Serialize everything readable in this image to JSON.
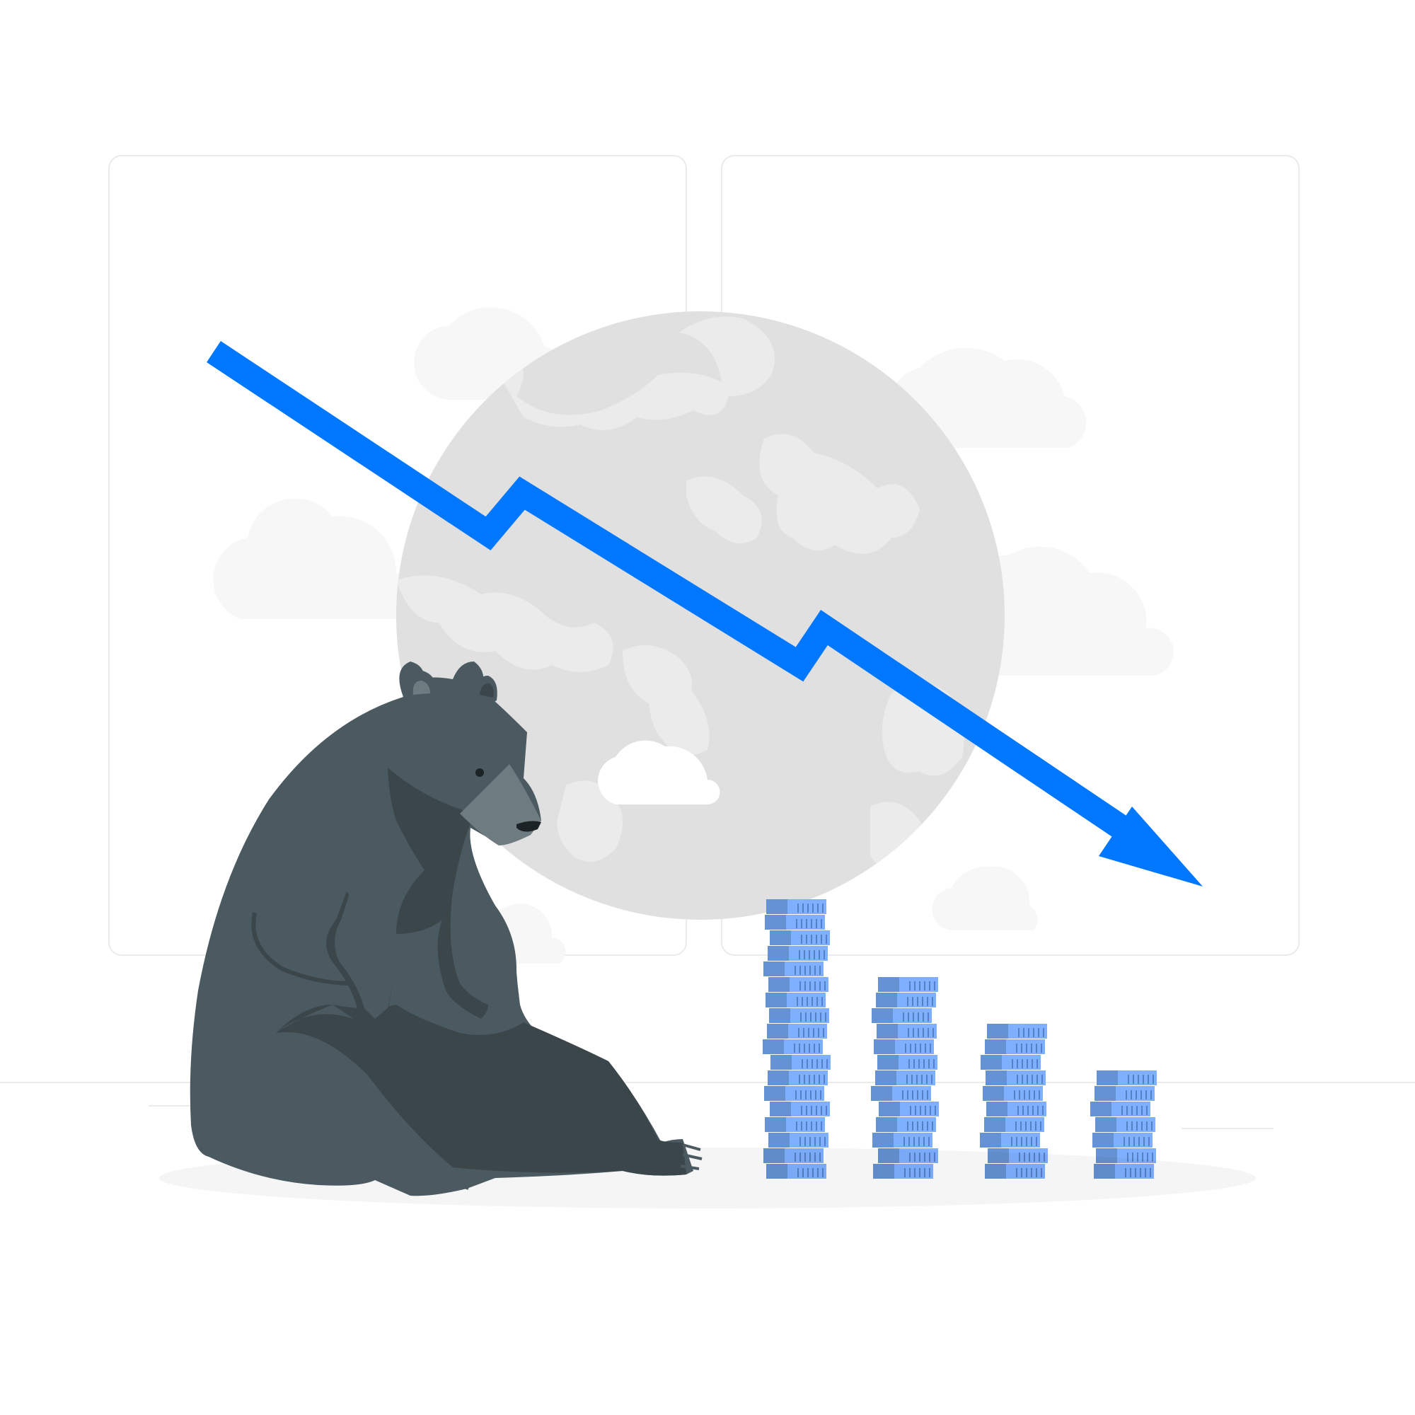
{
  "colors": {
    "background": "#ffffff",
    "panel_stroke": "#ebebeb",
    "globe": "#e0e0e0",
    "land": "#ebebeb",
    "cloud": "#f5f5f5",
    "cloud_front": "#ffffff",
    "arrow": "#0077ff",
    "coin_side": "#6592d3",
    "coin_face": "#7fb0ff",
    "coin_tick": "#5480c4",
    "bear_body": "#4a5a60",
    "bear_shadow": "#3b464b",
    "bear_snout": "#6e7b80",
    "bear_nose": "#1c2326",
    "ground_shadow": "#f5f5f5",
    "floor_line": "#ebebeb"
  },
  "illustration": {
    "subject": "bear-market",
    "icons": [
      "bear-icon",
      "downtrend-arrow-icon",
      "globe-icon",
      "cloud-icon",
      "coin-stack-icon"
    ]
  },
  "coin_stacks": [
    {
      "coins": 18
    },
    {
      "coins": 13
    },
    {
      "coins": 10
    },
    {
      "coins": 7
    }
  ]
}
